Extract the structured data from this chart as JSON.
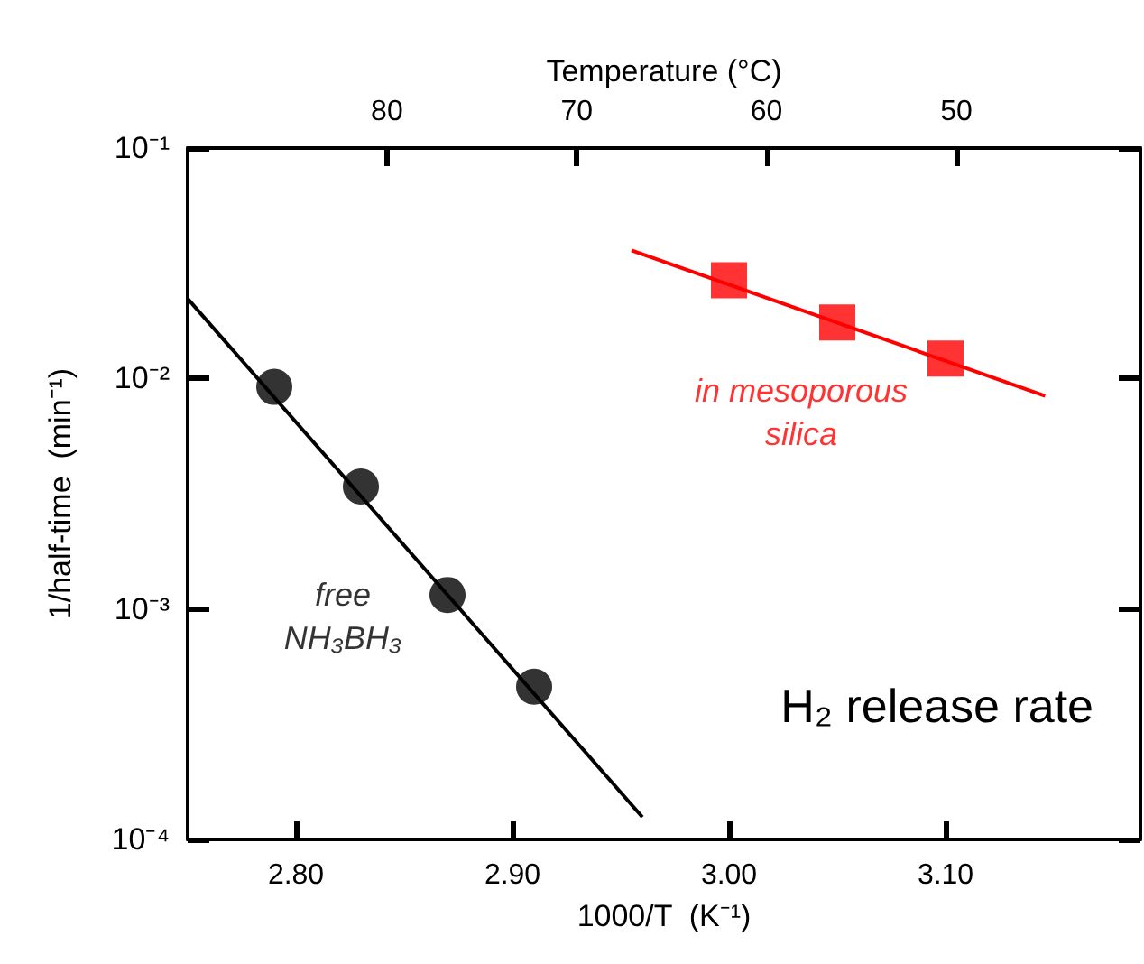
{
  "chart_data": {
    "type": "scatter",
    "xlabel": "1000/T  (K⁻¹)",
    "ylabel": "1/half-time  (min⁻¹)",
    "x2label": "Temperature (°C)",
    "xlim": [
      2.75,
      3.19
    ],
    "xticks": [
      {
        "value": 2.8,
        "label": "2.80"
      },
      {
        "value": 2.9,
        "label": "2.90"
      },
      {
        "value": 3.0,
        "label": "3.00"
      },
      {
        "value": 3.1,
        "label": "3.10"
      }
    ],
    "x2lim": [
      90.5,
      40.3
    ],
    "x2ticks": [
      80,
      70,
      60,
      50
    ],
    "ylim": [
      0.0001,
      0.1
    ],
    "yticks": [
      {
        "value": 0.0001,
        "label": "10⁻⁴"
      },
      {
        "value": 0.001,
        "label": "10⁻³"
      },
      {
        "value": 0.01,
        "label": "10⁻²"
      },
      {
        "value": 0.1,
        "label": "10⁻¹"
      }
    ],
    "log": "y",
    "grid": false,
    "series": [
      {
        "name": "free\nNH₃BH₃",
        "color": "#000000",
        "marker": "circle",
        "x": [
          2.79,
          2.83,
          2.87,
          2.91
        ],
        "values": [
          0.0092,
          0.0034,
          0.00115,
          0.00046
        ]
      },
      {
        "name": "in mesoporous\nsilica",
        "color": "#ff0000",
        "marker": "square",
        "x": [
          3.0,
          3.05,
          3.1
        ],
        "values": [
          0.0267,
          0.0175,
          0.0122
        ]
      },
      {
        "type": "line",
        "color": "#000000",
        "marker": "none",
        "x": [
          2.75,
          2.96
        ],
        "values": [
          0.0222,
          0.000125
        ]
      },
      {
        "type": "line",
        "color": "#ff0000",
        "marker": "none",
        "x": [
          2.955,
          3.146
        ],
        "values": [
          0.036,
          0.0084
        ]
      }
    ],
    "annotations": [
      "H₂ release rate"
    ]
  }
}
